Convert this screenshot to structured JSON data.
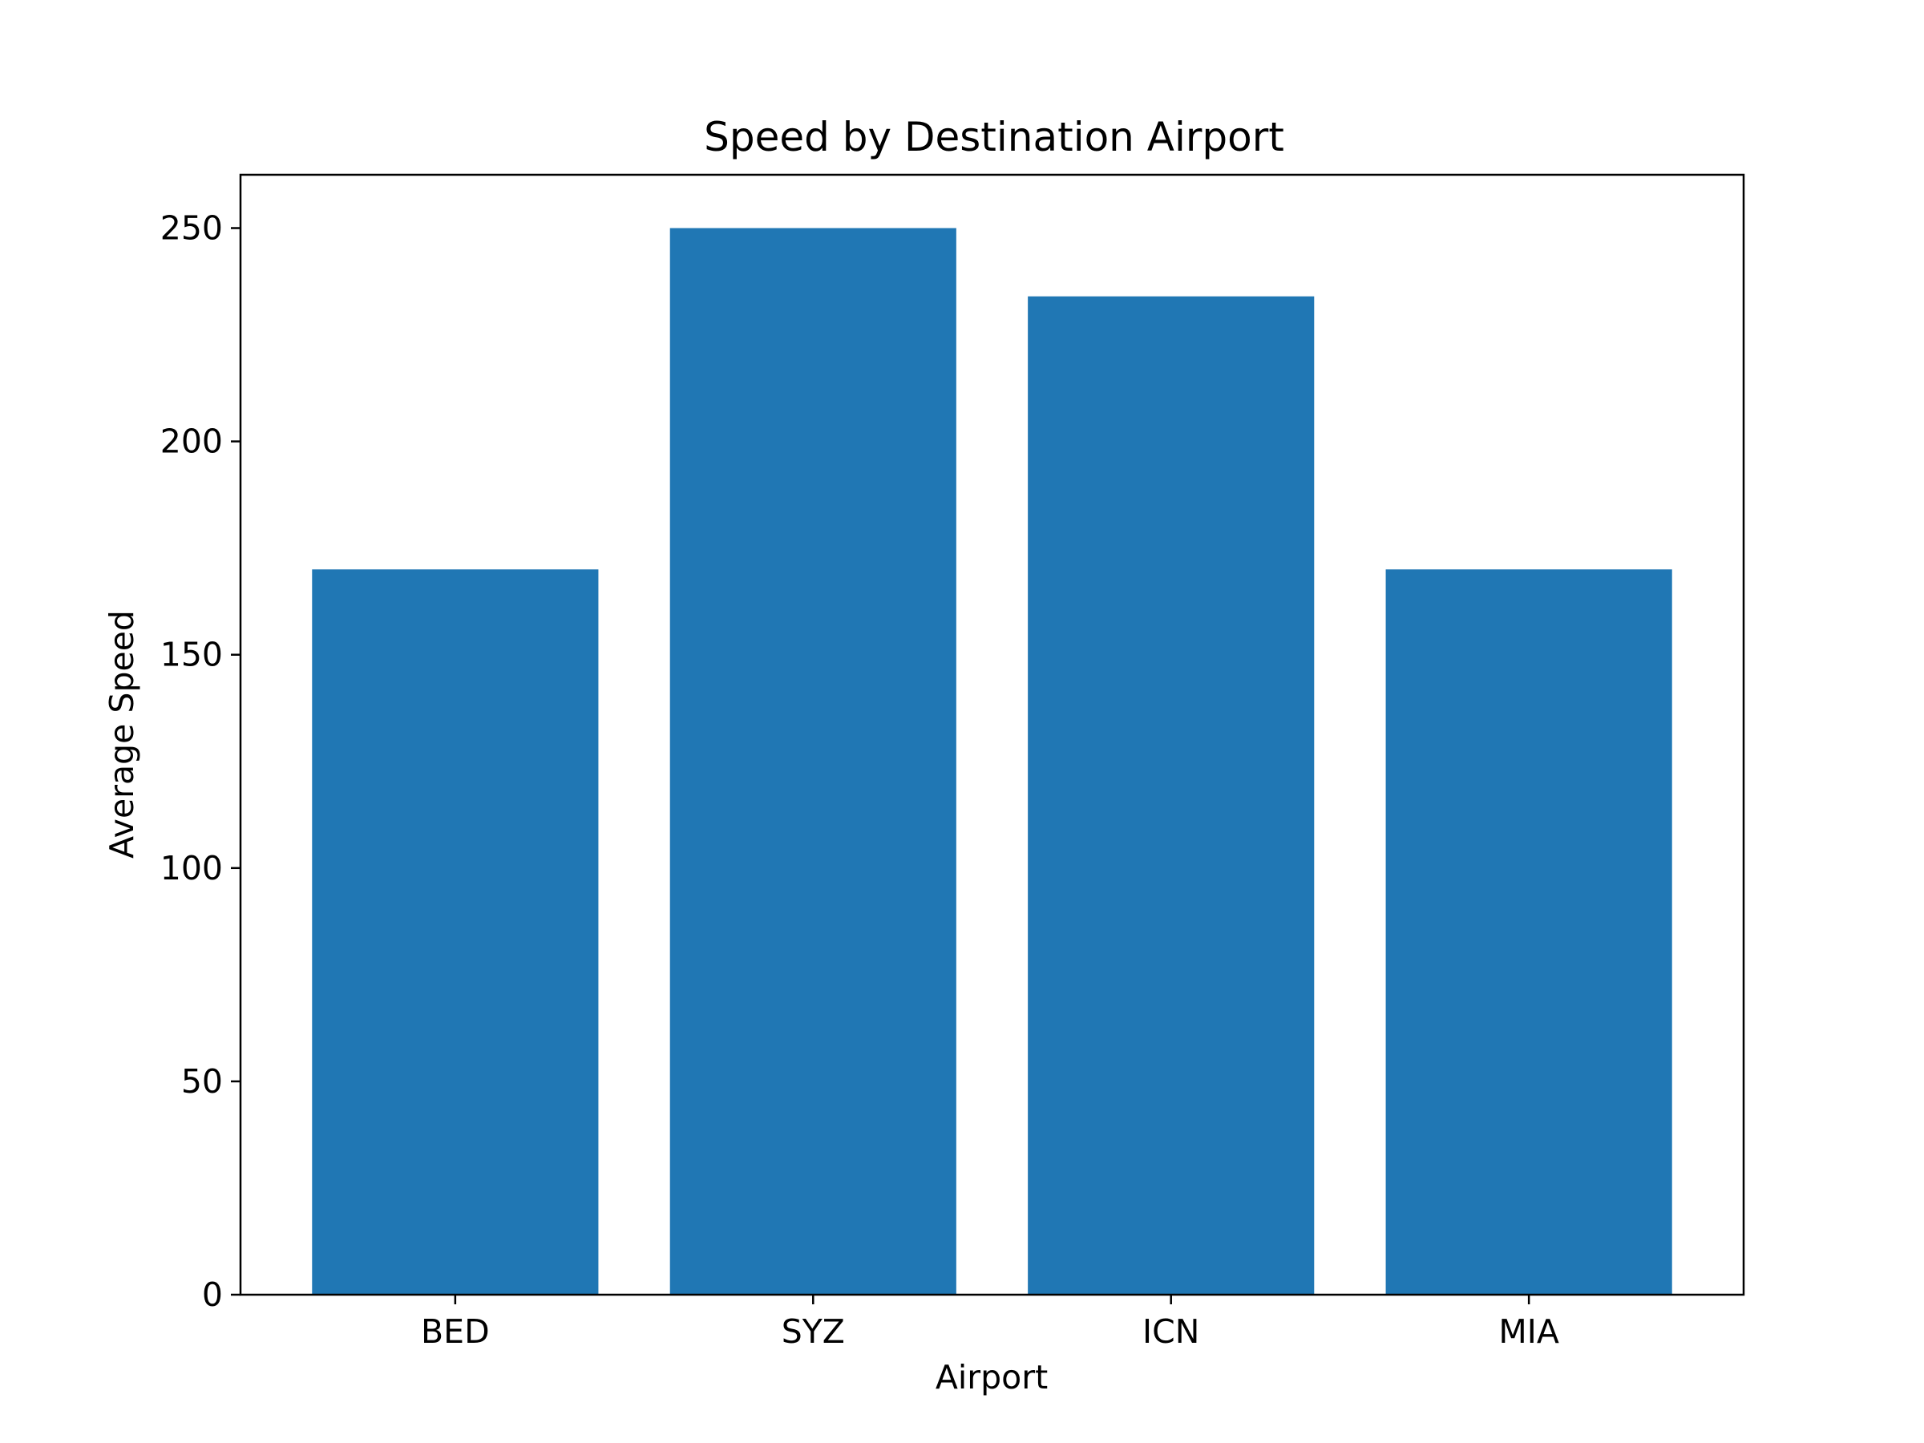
{
  "chart_data": {
    "type": "bar",
    "title": "Speed by Destination Airport",
    "xlabel": "Airport",
    "ylabel": "Average Speed",
    "categories": [
      "BED",
      "SYZ",
      "ICN",
      "MIA"
    ],
    "values": [
      170,
      250,
      234,
      170
    ],
    "ylim": [
      0,
      262.5
    ],
    "yticks": [
      0,
      50,
      100,
      150,
      200,
      250
    ],
    "grid": false,
    "bar_color": "#2077b4"
  }
}
